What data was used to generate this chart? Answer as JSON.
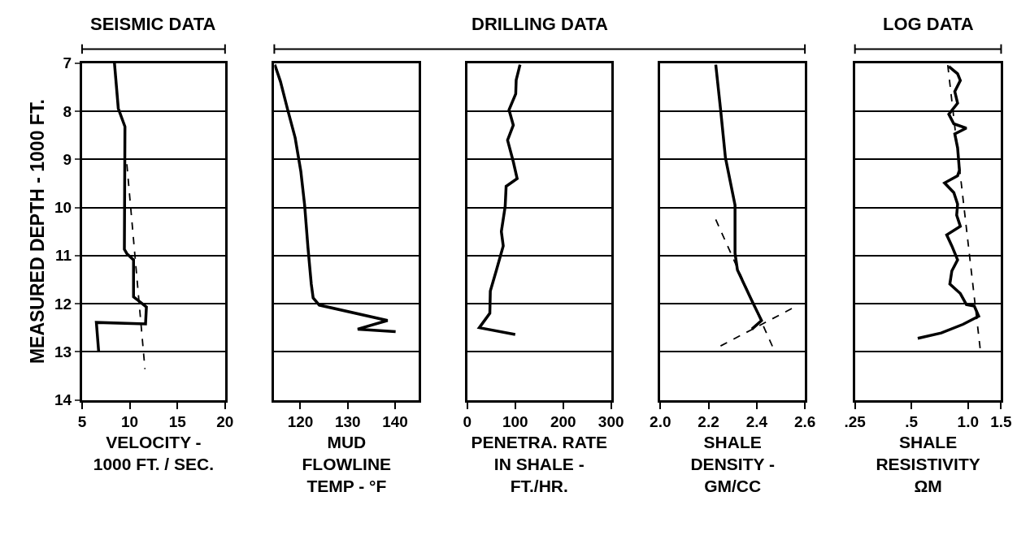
{
  "chart_data": [
    {
      "type": "line",
      "title": "SEISMIC DATA",
      "xlabel": "VELOCITY -\n1000 FT. / SEC.",
      "ylabel": "MEASURED DEPTH - 1000 FT.",
      "xlim": [
        5,
        20
      ],
      "xticks": [
        5,
        10,
        15,
        20
      ],
      "ylim": [
        14,
        7
      ],
      "yticks": [
        7,
        8,
        9,
        10,
        11,
        12,
        13,
        14
      ],
      "grid": "y",
      "series": [
        {
          "color": "#000000",
          "line_style": "solid",
          "x": [
            8.4,
            8.8,
            9.5,
            9.44,
            9.7,
            10.4,
            10.4,
            11.0,
            11.75,
            11.66,
            6.5,
            6.74
          ],
          "values": [
            7.0,
            7.94,
            8.32,
            10.87,
            10.96,
            11.09,
            11.86,
            11.95,
            12.07,
            12.42,
            12.39,
            12.99
          ]
        },
        {
          "color": "#000000",
          "line_style": "dashed",
          "x": [
            9.7,
            11.6
          ],
          "values": [
            9.1,
            13.36
          ]
        }
      ]
    },
    {
      "type": "line",
      "xlabel": "MUD\nFLOWLINE\nTEMP - °F",
      "xlim": [
        114.5,
        145
      ],
      "xticks": [
        120,
        130,
        140
      ],
      "ylim": [
        14,
        7
      ],
      "yticks": [
        7,
        8,
        9,
        10,
        11,
        12,
        13,
        14
      ],
      "grid": "y",
      "tick_labels": "x",
      "series": [
        {
          "color": "#000000",
          "line_style": "solid",
          "x": [
            114.6,
            115.8,
            117.3,
            118.9,
            120.1,
            120.9,
            121.6,
            122.3,
            122.7,
            124.0,
            138.4,
            132.1,
            140.1
          ],
          "values": [
            7.03,
            7.38,
            7.96,
            8.55,
            9.25,
            9.95,
            10.83,
            11.59,
            11.88,
            12.03,
            12.35,
            12.53,
            12.58
          ]
        }
      ]
    },
    {
      "type": "line",
      "title": "DRILLING DATA",
      "xlabel": "PENETRA. RATE\nIN SHALE -\nFT./HR.",
      "xlim": [
        0,
        300
      ],
      "xticks": [
        0,
        100,
        200,
        300
      ],
      "ylim": [
        14,
        7
      ],
      "yticks": [
        7,
        8,
        9,
        10,
        11,
        12,
        13,
        14
      ],
      "grid": "y",
      "tick_labels": "x",
      "series": [
        {
          "color": "#000000",
          "line_style": "solid",
          "x": [
            110,
            102,
            101,
            87,
            96,
            84,
            96,
            104,
            81,
            79,
            71,
            75,
            60,
            48,
            47,
            25,
            100
          ],
          "values": [
            7.03,
            7.35,
            7.64,
            7.97,
            8.29,
            8.6,
            9.05,
            9.4,
            9.56,
            9.98,
            10.5,
            10.8,
            11.33,
            11.74,
            12.2,
            12.5,
            12.64
          ]
        }
      ]
    },
    {
      "type": "line",
      "xlabel": "SHALE\nDENSITY -\nGM/CC",
      "xlim": [
        2.0,
        2.6
      ],
      "xticks": [
        {
          "value": 2.0,
          "label": "2.0"
        },
        2.2,
        2.4,
        2.6
      ],
      "ylim": [
        14,
        7
      ],
      "yticks": [
        7,
        8,
        9,
        10,
        11,
        12,
        13,
        14
      ],
      "grid": "y",
      "tick_labels": "x",
      "series": [
        {
          "color": "#000000",
          "line_style": "solid",
          "x": [
            2.23,
            2.25,
            2.27,
            2.31,
            2.31,
            2.32,
            2.38,
            2.42,
            2.38
          ],
          "values": [
            7.03,
            7.96,
            8.96,
            9.95,
            10.95,
            11.3,
            11.94,
            12.35,
            12.53
          ]
        },
        {
          "color": "#000000",
          "line_style": "dashed",
          "x": [
            2.23,
            2.47
          ],
          "values": [
            10.25,
            12.94
          ]
        },
        {
          "color": "#000000",
          "line_style": "dashed",
          "x": [
            2.25,
            2.55
          ],
          "values": [
            12.88,
            12.09
          ]
        }
      ]
    },
    {
      "type": "line",
      "title": "LOG DATA",
      "xlabel": "SHALE\nRESISTIVITY\nΩM",
      "log": "x",
      "xlim": [
        0.25,
        1.5
      ],
      "xticks": [
        {
          "value": 0.25,
          "label": ".25"
        },
        {
          "value": 0.5,
          "label": ".5"
        },
        {
          "value": 1.0,
          "label": "1.0"
        },
        1.5
      ],
      "ylim": [
        14,
        7
      ],
      "yticks": [
        7,
        8,
        9,
        10,
        11,
        12,
        13,
        14
      ],
      "grid": "y",
      "tick_labels": "x",
      "series": [
        {
          "color": "#000000",
          "line_style": "solid",
          "x": [
            0.79,
            0.88,
            0.91,
            0.85,
            0.88,
            0.79,
            0.84,
            0.98,
            0.85,
            0.88,
            0.9,
            0.88,
            0.75,
            0.84,
            0.88,
            0.87,
            0.91,
            0.77,
            0.82,
            0.88,
            0.82,
            0.8,
            0.91,
            0.98,
            1.08,
            1.14,
            0.94,
            0.72,
            0.54
          ],
          "values": [
            7.07,
            7.22,
            7.36,
            7.59,
            7.83,
            8.06,
            8.26,
            8.35,
            8.47,
            8.76,
            9.23,
            9.34,
            9.49,
            9.69,
            9.93,
            10.16,
            10.39,
            10.57,
            10.8,
            11.09,
            11.32,
            11.59,
            11.79,
            12.02,
            12.05,
            12.26,
            12.43,
            12.61,
            12.72
          ]
        },
        {
          "color": "#000000",
          "line_style": "dashed",
          "x": [
            0.78,
            1.16
          ],
          "values": [
            7.04,
            12.93
          ]
        }
      ]
    }
  ]
}
